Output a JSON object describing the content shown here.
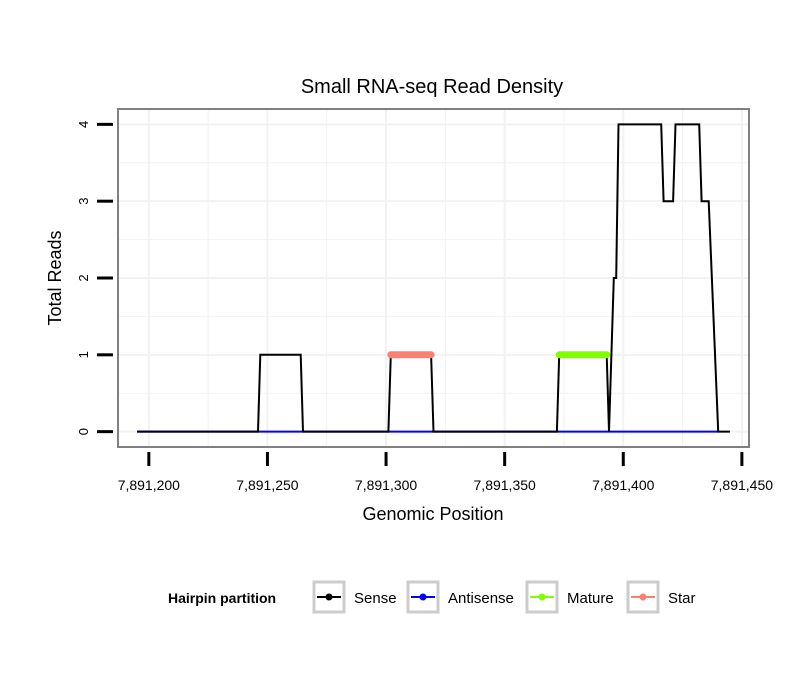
{
  "chart_data": {
    "type": "line",
    "title": "Small RNA-seq Read Density",
    "xlabel": "Genomic Position",
    "ylabel": "Total Reads",
    "xlim": [
      7891187,
      7891453
    ],
    "ylim": [
      -0.2,
      4.2
    ],
    "xticks": [
      7891200,
      7891250,
      7891300,
      7891350,
      7891400,
      7891450
    ],
    "xtick_labels": [
      "7,891,200",
      "7,891,250",
      "7,891,300",
      "7,891,350",
      "7,891,400",
      "7,891,450"
    ],
    "yticks": [
      0,
      1,
      2,
      3,
      4
    ],
    "ytick_labels": [
      "0",
      "1",
      "2",
      "3",
      "4"
    ],
    "grid": true,
    "legend": {
      "title": "Hairpin partition",
      "position": "bottom",
      "entries": [
        {
          "name": "Sense",
          "color": "#000000"
        },
        {
          "name": "Antisense",
          "color": "#0000ff"
        },
        {
          "name": "Mature",
          "color": "#7fff00"
        },
        {
          "name": "Star",
          "color": "#fa8072"
        }
      ]
    },
    "series": [
      {
        "name": "Sense",
        "color": "#000000",
        "x": [
          7891195,
          7891246,
          7891247,
          7891264,
          7891265,
          7891301,
          7891302,
          7891319,
          7891320,
          7891372,
          7891373,
          7891393,
          7891394,
          7891396,
          7891397,
          7891398,
          7891416,
          7891417,
          7891421,
          7891422,
          7891432,
          7891433,
          7891436,
          7891440,
          7891445
        ],
        "y": [
          0,
          0,
          1,
          1,
          0,
          0,
          1,
          1,
          0,
          0,
          1,
          1,
          0,
          2,
          2,
          4,
          4,
          3,
          3,
          4,
          4,
          3,
          3,
          0,
          0
        ]
      },
      {
        "name": "Antisense",
        "color": "#0000ff",
        "x": [
          7891195,
          7891440
        ],
        "y": [
          0,
          0
        ]
      },
      {
        "name": "Mature",
        "color": "#7fff00",
        "x": [
          7891373,
          7891393
        ],
        "y": [
          1,
          1
        ]
      },
      {
        "name": "Star",
        "color": "#fa8072",
        "x": [
          7891302,
          7891319
        ],
        "y": [
          1,
          1
        ]
      }
    ]
  }
}
